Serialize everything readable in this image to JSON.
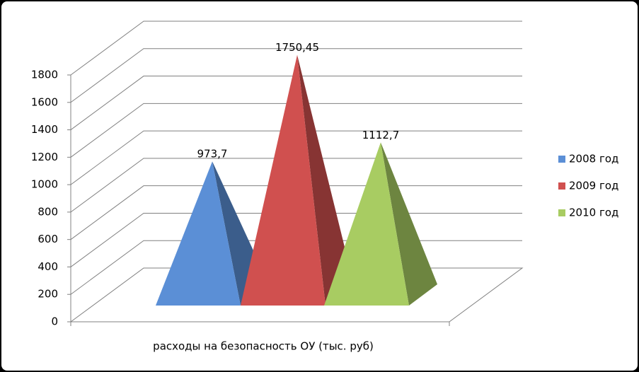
{
  "chart_data": {
    "type": "pyramid3d",
    "categories": [
      "расходы на безопасность ОУ (тыс. руб)"
    ],
    "series": [
      {
        "name": "2008 год",
        "color": "#5b8fd6",
        "values": [
          973.7
        ],
        "value_labels": [
          "973,7"
        ]
      },
      {
        "name": "2009 год",
        "color": "#d0504f",
        "values": [
          1750.45
        ],
        "value_labels": [
          "1750,45"
        ]
      },
      {
        "name": "2010 год",
        "color": "#a8cc62",
        "values": [
          1112.7
        ],
        "value_labels": [
          "1112,7"
        ]
      }
    ],
    "ylim": [
      0,
      1800
    ],
    "yticks": [
      0,
      200,
      400,
      600,
      800,
      1000,
      1200,
      1400,
      1600,
      1800
    ],
    "grid": true,
    "legend": "right"
  }
}
